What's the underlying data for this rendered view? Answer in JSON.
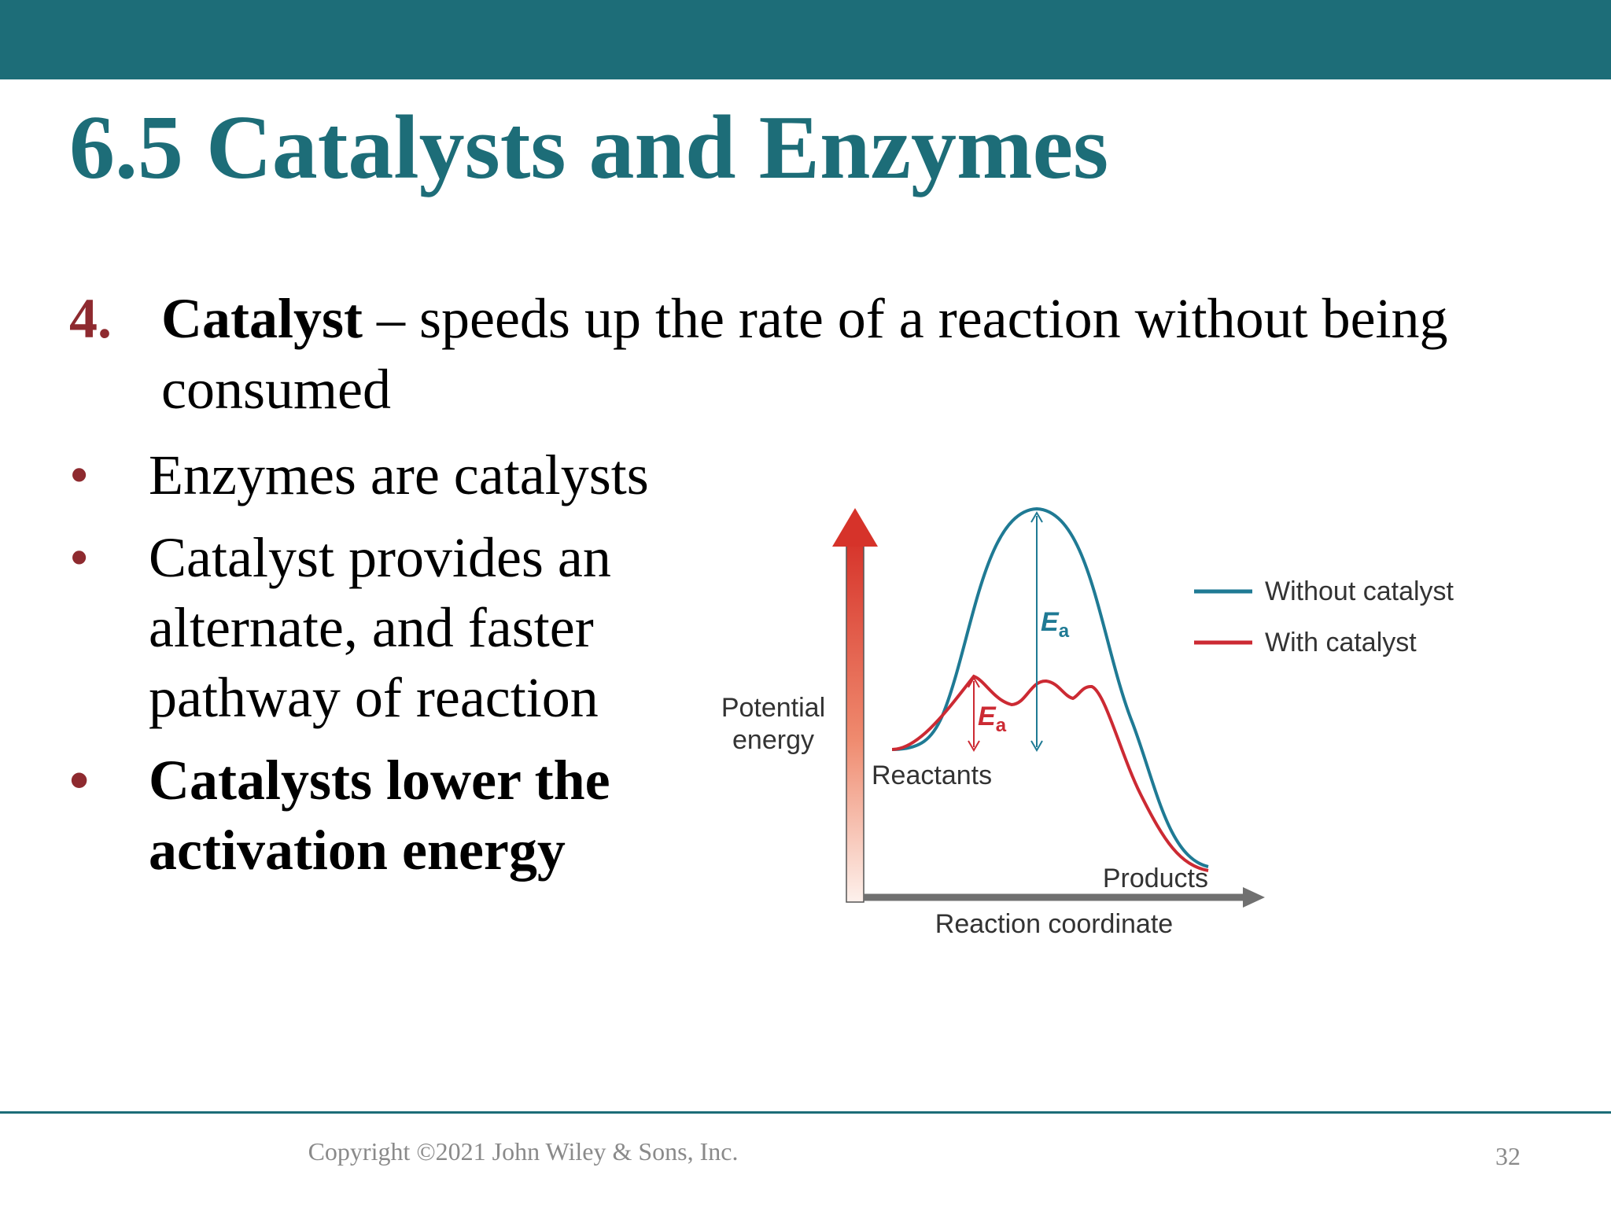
{
  "slide": {
    "title": "6.5 Catalysts and Enzymes",
    "numbered_point": {
      "number": "4.",
      "term": "Catalyst",
      "text": " – speeds up the rate of a reaction without being consumed"
    },
    "bullets": [
      {
        "text": "Enzymes are catalysts",
        "bold": false
      },
      {
        "text": "Catalyst provides an alternate, and faster pathway of reaction",
        "bold": false
      },
      {
        "text": "Catalysts lower the activation energy",
        "bold": true
      }
    ],
    "bullet_symbol": "•"
  },
  "diagram": {
    "y_axis_label_line1": "Potential",
    "y_axis_label_line2": "energy",
    "x_axis_label": "Reaction coordinate",
    "reactants_label": "Reactants",
    "products_label": "Products",
    "ea_symbol": "E",
    "ea_subscript": "a",
    "legend": [
      {
        "label": "Without catalyst",
        "color": "#1f7a94"
      },
      {
        "label": "With catalyst",
        "color": "#cc2a33"
      }
    ]
  },
  "footer": {
    "copyright": "Copyright ©2021 John Wiley & Sons, Inc.",
    "page_number": "32"
  },
  "colors": {
    "accent": "#1d6d78",
    "bullet": "#8e2a2f",
    "without_catalyst": "#1f7a94",
    "with_catalyst": "#cc2a33"
  }
}
